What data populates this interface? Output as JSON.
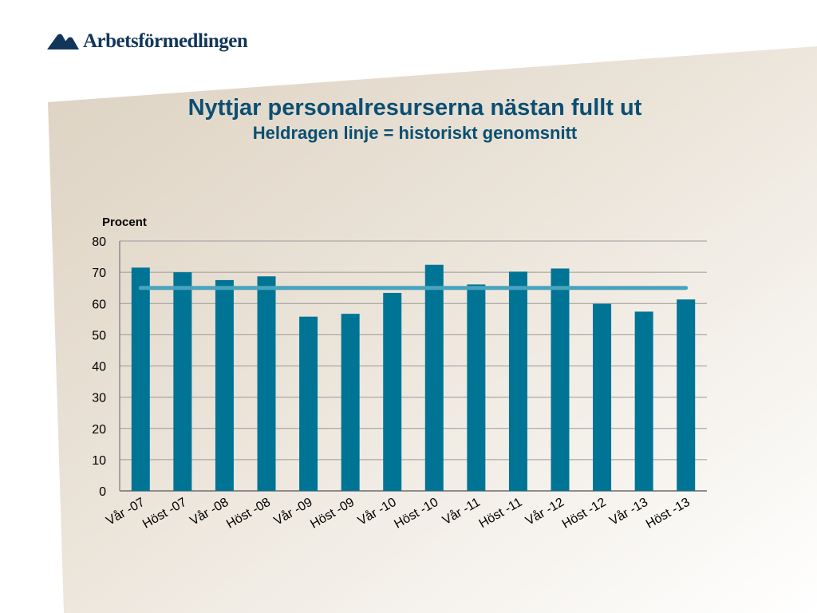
{
  "logo": {
    "text": "Arbetsförmedlingen",
    "icon": "arbetsformedlingen-swoosh-icon"
  },
  "title": "Nyttjar personalresurserna nästan fullt ut",
  "subtitle": "Heldragen linje = historiskt genomsnitt",
  "colors": {
    "bar": "#007494",
    "average_line": "#4aa3bd",
    "title": "#0b4f73",
    "logo": "#12365a"
  },
  "chart_data": {
    "type": "bar",
    "ylabel": "Procent",
    "ylim": [
      0,
      80
    ],
    "yticks": [
      0,
      10,
      20,
      30,
      40,
      50,
      60,
      70,
      80
    ],
    "grid": true,
    "categories": [
      "Vår -07",
      "Höst -07",
      "Vår -08",
      "Höst -08",
      "Vår -09",
      "Höst -09",
      "Vår -10",
      "Höst -10",
      "Vår -11",
      "Höst -11",
      "Vår -12",
      "Höst -12",
      "Vår -13",
      "Höst -13"
    ],
    "values": [
      71.5,
      70,
      67.5,
      68.7,
      55.8,
      56.7,
      63.4,
      72.4,
      66.1,
      70.2,
      71.2,
      59.9,
      57.4,
      61.3
    ],
    "reference_line": {
      "value": 65
    }
  }
}
